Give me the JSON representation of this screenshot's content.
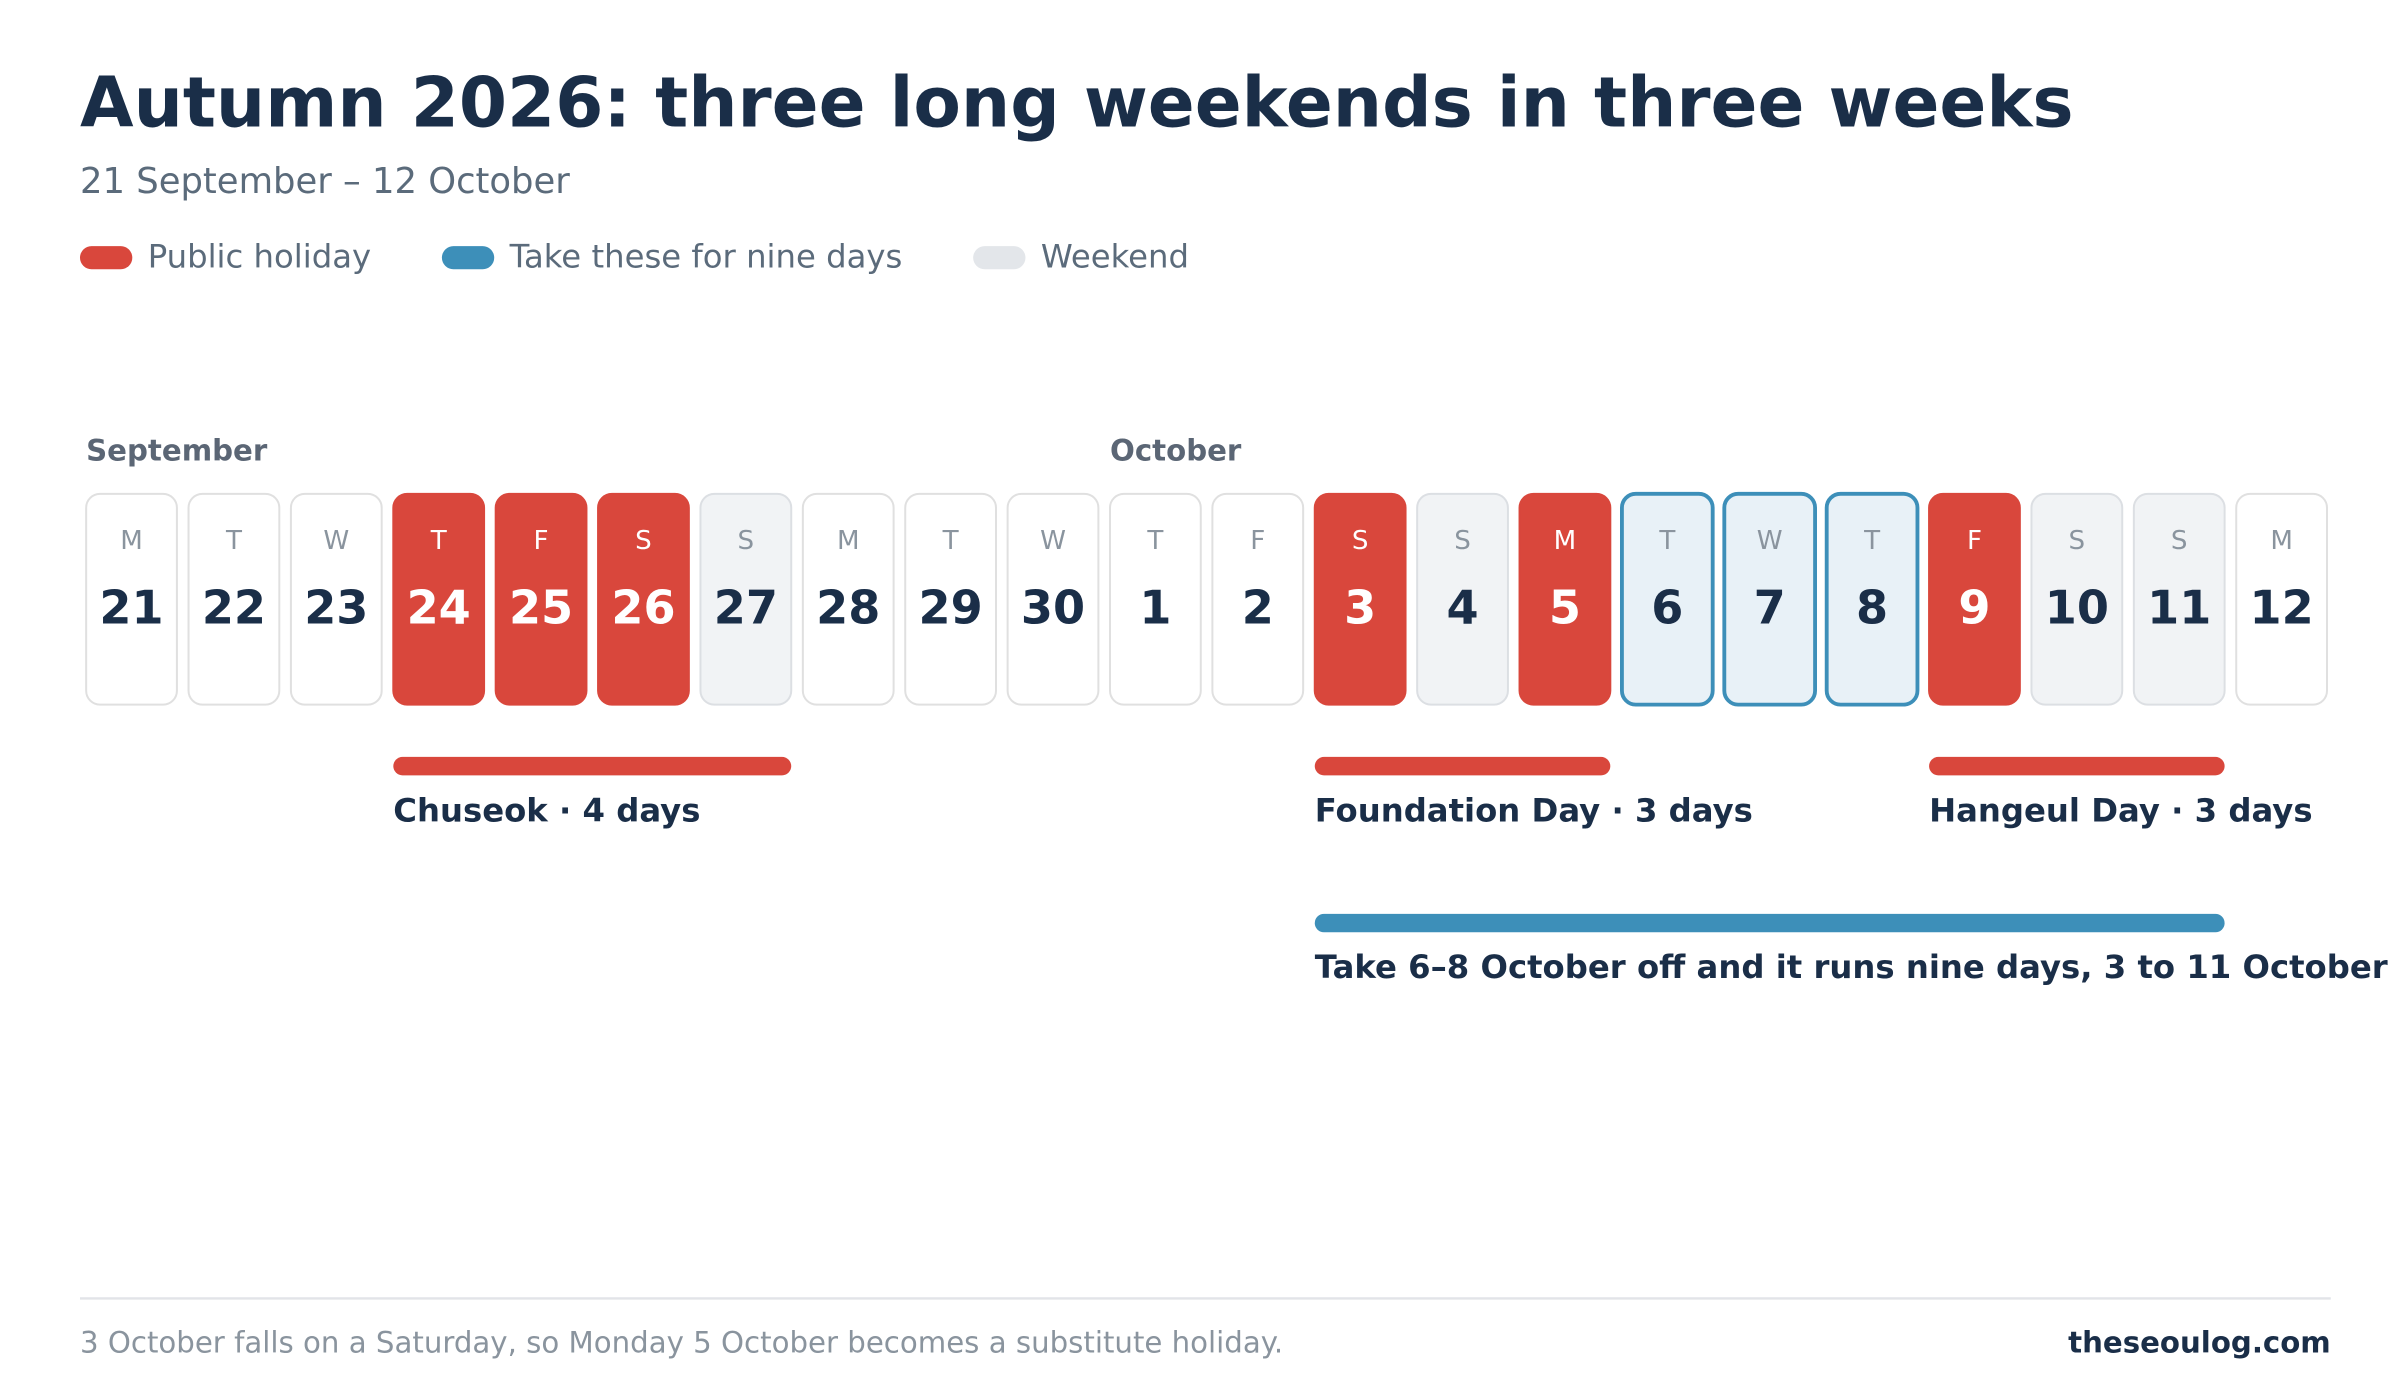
{
  "header": {
    "title": "Autumn 2026: three long weekends in three weeks",
    "subtitle": "21 September – 12 October"
  },
  "legend": [
    {
      "label": "Public holiday",
      "kind": "holiday",
      "color": "#d9473c"
    },
    {
      "label": "Take these for nine days",
      "kind": "leave",
      "color": "#3d8fb9"
    },
    {
      "label": "Weekend",
      "kind": "weekend",
      "color": "#e3e6ea"
    }
  ],
  "days": [
    {
      "month": "September",
      "weekday": "M",
      "day": "21",
      "kind": "workday"
    },
    {
      "weekday": "T",
      "day": "22",
      "kind": "workday"
    },
    {
      "weekday": "W",
      "day": "23",
      "kind": "workday"
    },
    {
      "weekday": "T",
      "day": "24",
      "kind": "holiday"
    },
    {
      "weekday": "F",
      "day": "25",
      "kind": "holiday"
    },
    {
      "weekday": "S",
      "day": "26",
      "kind": "holiday"
    },
    {
      "weekday": "S",
      "day": "27",
      "kind": "weekend"
    },
    {
      "weekday": "M",
      "day": "28",
      "kind": "workday"
    },
    {
      "weekday": "T",
      "day": "29",
      "kind": "workday"
    },
    {
      "weekday": "W",
      "day": "30",
      "kind": "workday"
    },
    {
      "month": "October",
      "weekday": "T",
      "day": "1",
      "kind": "workday"
    },
    {
      "weekday": "F",
      "day": "2",
      "kind": "workday"
    },
    {
      "weekday": "S",
      "day": "3",
      "kind": "holiday"
    },
    {
      "weekday": "S",
      "day": "4",
      "kind": "weekend"
    },
    {
      "weekday": "M",
      "day": "5",
      "kind": "holiday"
    },
    {
      "weekday": "T",
      "day": "6",
      "kind": "leave"
    },
    {
      "weekday": "W",
      "day": "7",
      "kind": "leave"
    },
    {
      "weekday": "T",
      "day": "8",
      "kind": "leave"
    },
    {
      "weekday": "F",
      "day": "9",
      "kind": "holiday"
    },
    {
      "weekday": "S",
      "day": "10",
      "kind": "weekend"
    },
    {
      "weekday": "S",
      "day": "11",
      "kind": "weekend"
    },
    {
      "weekday": "M",
      "day": "12",
      "kind": "workday"
    }
  ],
  "spans": [
    {
      "label": "Chuseok · 4 days",
      "first": "24",
      "last": "27",
      "kind": "holiday"
    },
    {
      "label": "Foundation Day · 3 days",
      "first": "3",
      "last": "5",
      "kind": "holiday"
    },
    {
      "label": "Hangeul Day · 3 days",
      "first": "9",
      "last": "11",
      "kind": "holiday"
    },
    {
      "label": "Take 6–8 October off and it runs nine days, 3 to 11 October",
      "first": "3",
      "last": "11",
      "kind": "leave"
    }
  ],
  "footer": {
    "note": "3 October falls on a Saturday, so Monday 5 October becomes a substitute holiday.",
    "source": "theseoulog.com"
  }
}
